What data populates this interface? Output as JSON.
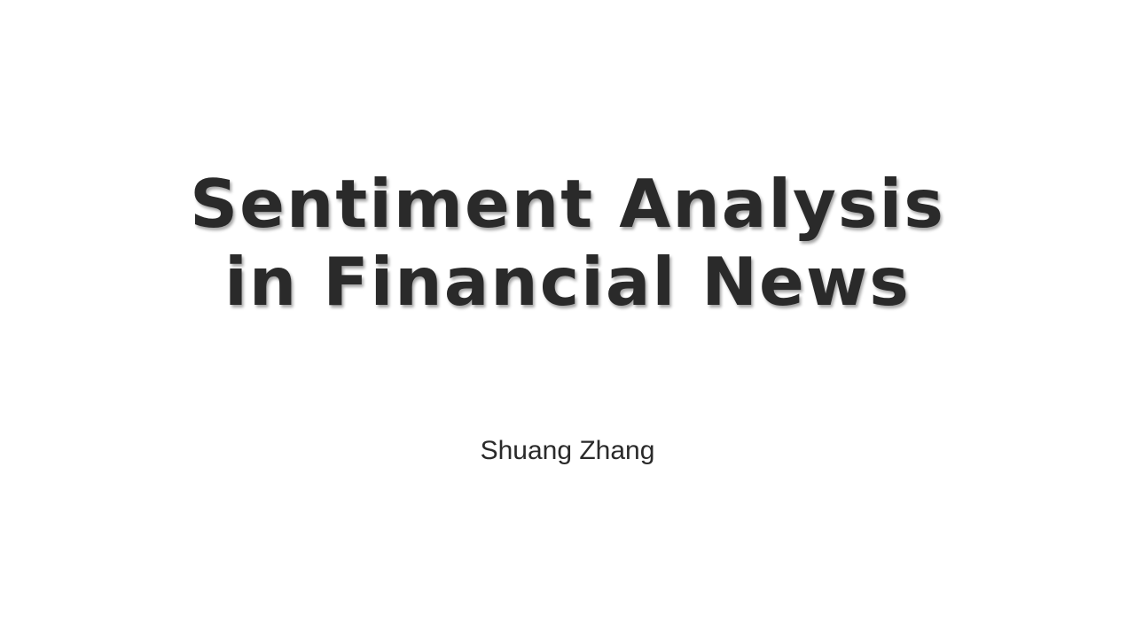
{
  "slide": {
    "title_line1": "Sentiment Analysis",
    "title_line2": "in Financial News",
    "author": "Shuang Zhang",
    "colors": {
      "background": "#ffffff",
      "text": "#2a2a2a"
    }
  }
}
